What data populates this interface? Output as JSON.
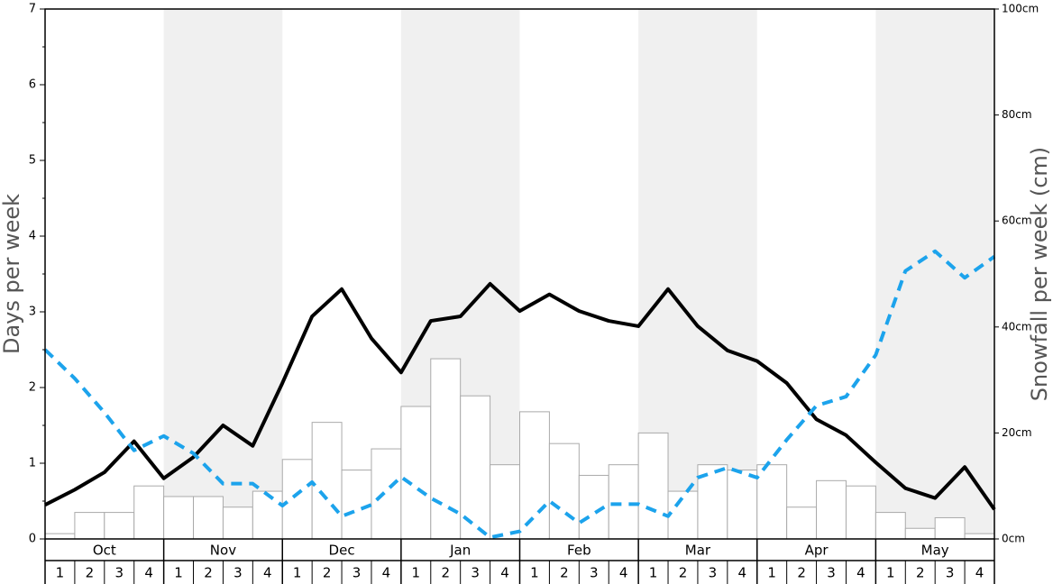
{
  "chart_data": {
    "type": "combo",
    "ylabel": "Days per week",
    "y2label": "Snowfall per week (cm)",
    "months": [
      "Oct",
      "Nov",
      "Dec",
      "Jan",
      "Feb",
      "Mar",
      "Apr",
      "May"
    ],
    "weeks": [
      1,
      2,
      3,
      4
    ],
    "shade_color": "#f0f0f0",
    "bars": {
      "axis": "y2",
      "color": "#ffffff",
      "edge_color": "#aaaaaa",
      "values": [
        1,
        5,
        5,
        10,
        8,
        8,
        6,
        9,
        15,
        22,
        13,
        17,
        25,
        34,
        27,
        14,
        24,
        18,
        12,
        14,
        20,
        9,
        14,
        13,
        14,
        6,
        11,
        10,
        5,
        2,
        4,
        1
      ]
    },
    "lines": [
      {
        "color": "#000000",
        "dashed": false,
        "values": [
          0.45,
          0.65,
          0.88,
          1.29,
          0.8,
          1.08,
          1.5,
          1.23,
          2.06,
          2.94,
          3.3,
          2.65,
          2.2,
          2.88,
          2.94,
          3.37,
          3.01,
          3.23,
          3.01,
          2.88,
          2.81,
          3.3,
          2.81,
          2.49,
          2.35,
          2.06,
          1.58,
          1.37,
          1.01,
          0.67,
          0.54,
          0.95,
          0.39
        ]
      },
      {
        "color": "#1ca3ec",
        "dashed": true,
        "values": [
          2.5,
          2.12,
          1.67,
          1.17,
          1.36,
          1.13,
          0.73,
          0.73,
          0.44,
          0.75,
          0.3,
          0.45,
          0.82,
          0.54,
          0.33,
          0.02,
          0.1,
          0.5,
          0.21,
          0.46,
          0.46,
          0.3,
          0.81,
          0.94,
          0.81,
          1.31,
          1.76,
          1.88,
          2.43,
          3.54,
          3.8,
          3.45,
          3.73
        ]
      }
    ],
    "ylim": [
      0,
      7
    ],
    "yticks": [
      0,
      1,
      2,
      3,
      4,
      5,
      6,
      7
    ],
    "y2lim": [
      0,
      100
    ],
    "y2ticks": [
      {
        "value": 0,
        "label": "0cm"
      },
      {
        "value": 20,
        "label": "20cm"
      },
      {
        "value": 40,
        "label": "40cm"
      },
      {
        "value": 60,
        "label": "60cm"
      },
      {
        "value": 80,
        "label": "80cm"
      },
      {
        "value": 100,
        "label": "100cm"
      }
    ]
  }
}
